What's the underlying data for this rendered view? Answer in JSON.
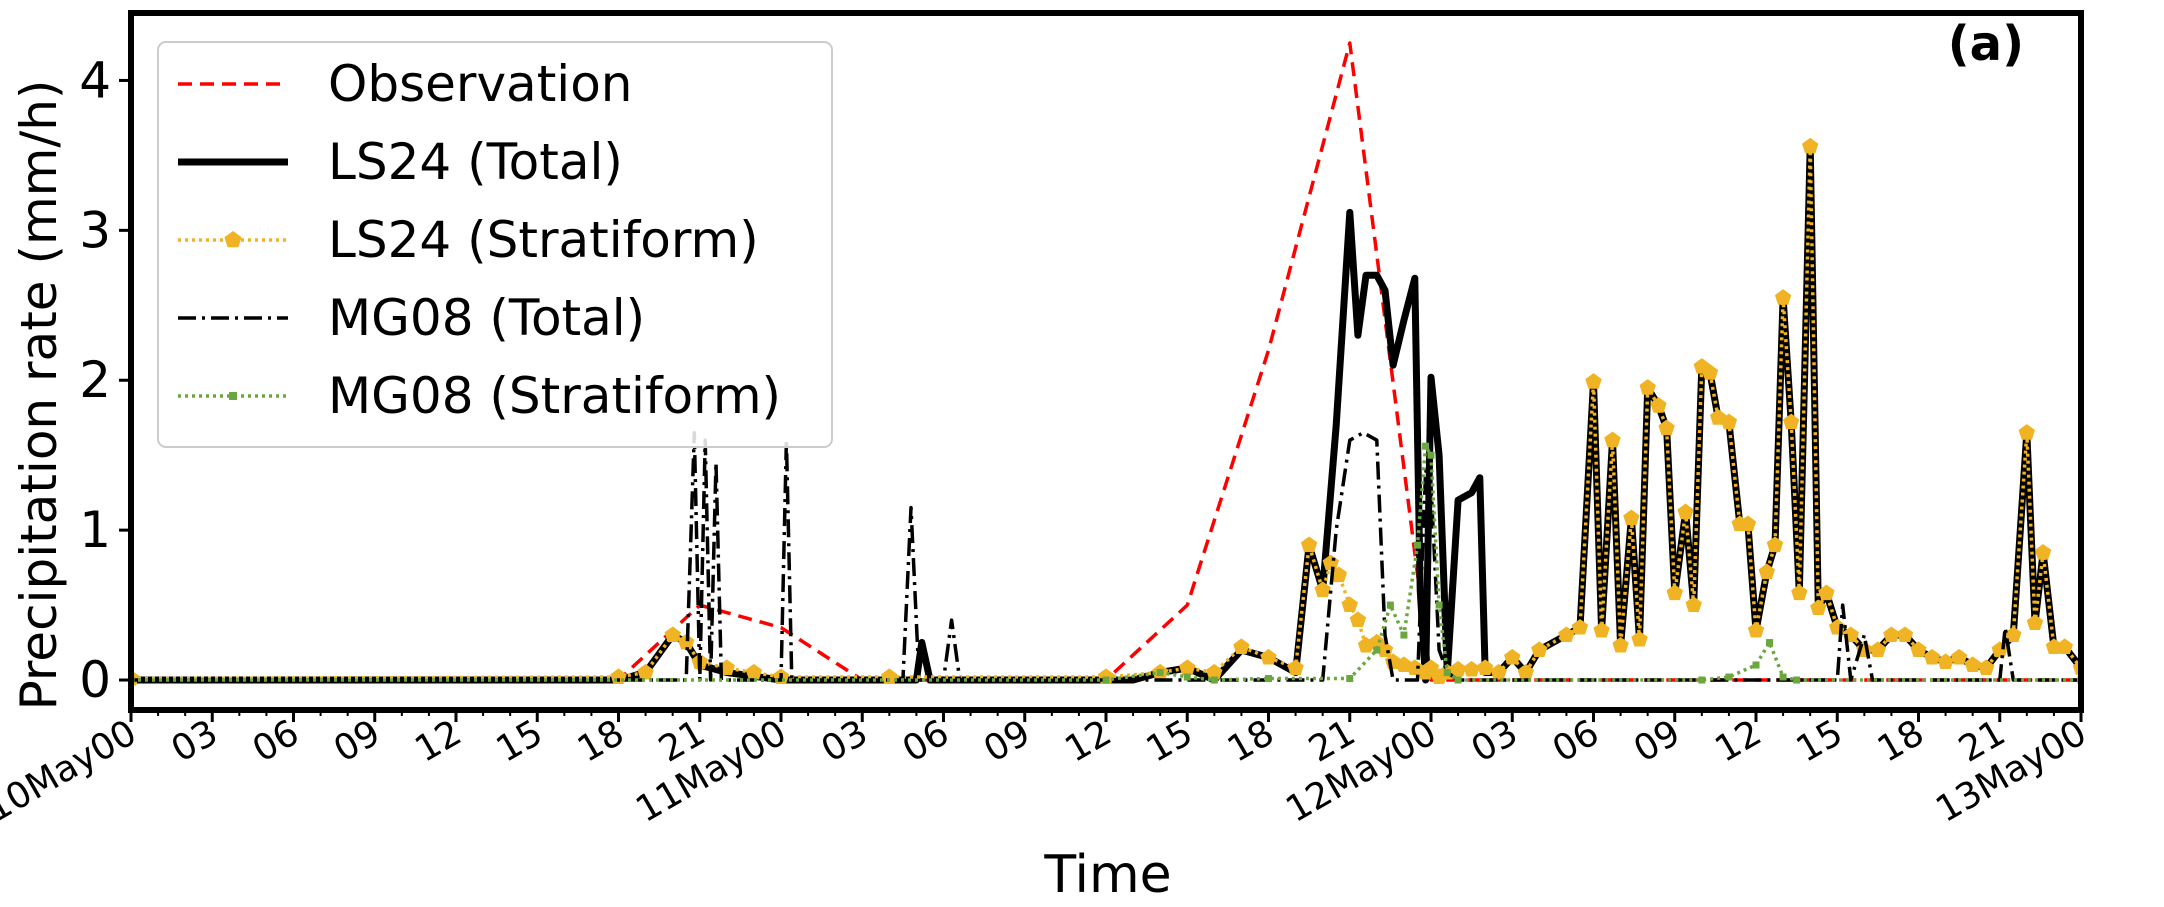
{
  "chart_data": {
    "type": "line",
    "panel_label": "(a)",
    "xlabel": "Time",
    "ylabel": "Precipitation rate (mm/h)",
    "xlim": [
      0,
      72
    ],
    "ylim": [
      -0.2,
      4.45
    ],
    "x_units": "hours since 10May00",
    "x_ticks": [
      {
        "x": 0,
        "label": "10May00"
      },
      {
        "x": 3,
        "label": "03"
      },
      {
        "x": 6,
        "label": "06"
      },
      {
        "x": 9,
        "label": "09"
      },
      {
        "x": 12,
        "label": "12"
      },
      {
        "x": 15,
        "label": "15"
      },
      {
        "x": 18,
        "label": "18"
      },
      {
        "x": 21,
        "label": "21"
      },
      {
        "x": 24,
        "label": "11May00"
      },
      {
        "x": 27,
        "label": "03"
      },
      {
        "x": 30,
        "label": "06"
      },
      {
        "x": 33,
        "label": "09"
      },
      {
        "x": 36,
        "label": "12"
      },
      {
        "x": 39,
        "label": "15"
      },
      {
        "x": 42,
        "label": "18"
      },
      {
        "x": 45,
        "label": "21"
      },
      {
        "x": 48,
        "label": "12May00"
      },
      {
        "x": 51,
        "label": "03"
      },
      {
        "x": 54,
        "label": "06"
      },
      {
        "x": 57,
        "label": "09"
      },
      {
        "x": 60,
        "label": "12"
      },
      {
        "x": 63,
        "label": "15"
      },
      {
        "x": 66,
        "label": "18"
      },
      {
        "x": 69,
        "label": "21"
      },
      {
        "x": 72,
        "label": "13May00"
      }
    ],
    "y_ticks": [
      0,
      1,
      2,
      3,
      4
    ],
    "legend_position": "top-left",
    "series": [
      {
        "name": "Observation",
        "color": "#ff0000",
        "style": "dashed",
        "points": [
          [
            0,
            0
          ],
          [
            3,
            0
          ],
          [
            6,
            0
          ],
          [
            9,
            0
          ],
          [
            12,
            0
          ],
          [
            15,
            0
          ],
          [
            18,
            0
          ],
          [
            21,
            0.5
          ],
          [
            24,
            0.35
          ],
          [
            27,
            0
          ],
          [
            30,
            0
          ],
          [
            33,
            0
          ],
          [
            36,
            0
          ],
          [
            39,
            0.5
          ],
          [
            42,
            2.2
          ],
          [
            45,
            4.25
          ],
          [
            48,
            0
          ],
          [
            51,
            0
          ],
          [
            54,
            0
          ],
          [
            57,
            0
          ],
          [
            60,
            0
          ],
          [
            63,
            0
          ],
          [
            66,
            0
          ],
          [
            69,
            0
          ],
          [
            72,
            0
          ]
        ]
      },
      {
        "name": "LS24 (Total)",
        "color": "#000000",
        "style": "solid",
        "points": [
          [
            0,
            0
          ],
          [
            18,
            0
          ],
          [
            19,
            0.05
          ],
          [
            20,
            0.3
          ],
          [
            20.5,
            0.25
          ],
          [
            21,
            0.1
          ],
          [
            22,
            0.05
          ],
          [
            24,
            0
          ],
          [
            28,
            0
          ],
          [
            29,
            0
          ],
          [
            29.2,
            0.25
          ],
          [
            29.5,
            0
          ],
          [
            30,
            0
          ],
          [
            36,
            0
          ],
          [
            37,
            0
          ],
          [
            38,
            0.05
          ],
          [
            39,
            0.08
          ],
          [
            40,
            0
          ],
          [
            41,
            0.2
          ],
          [
            42,
            0.15
          ],
          [
            43,
            0.05
          ],
          [
            43.5,
            0.9
          ],
          [
            44,
            0.6
          ],
          [
            44.5,
            1.7
          ],
          [
            45,
            3.12
          ],
          [
            45.3,
            2.3
          ],
          [
            45.6,
            2.7
          ],
          [
            46,
            2.7
          ],
          [
            46.3,
            2.6
          ],
          [
            46.6,
            2.1
          ],
          [
            47,
            2.4
          ],
          [
            47.4,
            2.68
          ],
          [
            47.6,
            0.6
          ],
          [
            47.8,
            0
          ],
          [
            48,
            2.02
          ],
          [
            48.3,
            1.5
          ],
          [
            48.6,
            0.05
          ],
          [
            49,
            1.2
          ],
          [
            49.5,
            1.25
          ],
          [
            49.8,
            1.35
          ],
          [
            50,
            0.05
          ],
          [
            50.5,
            0.05
          ],
          [
            51,
            0.15
          ],
          [
            51.5,
            0.05
          ],
          [
            52,
            0.2
          ],
          [
            53,
            0.3
          ],
          [
            53.5,
            0.35
          ],
          [
            54,
            1.99
          ],
          [
            54.3,
            0.33
          ],
          [
            54.7,
            1.6
          ],
          [
            55,
            0.23
          ],
          [
            55.4,
            1.08
          ],
          [
            55.7,
            0.27
          ],
          [
            56,
            1.95
          ],
          [
            56.4,
            1.83
          ],
          [
            56.7,
            1.68
          ],
          [
            57,
            0.58
          ],
          [
            57.4,
            1.12
          ],
          [
            57.7,
            0.5
          ],
          [
            58,
            2.09
          ],
          [
            58.3,
            2.05
          ],
          [
            58.6,
            1.75
          ],
          [
            59,
            1.72
          ],
          [
            59.4,
            1.04
          ],
          [
            59.7,
            1.04
          ],
          [
            60,
            0.33
          ],
          [
            60.4,
            0.72
          ],
          [
            60.7,
            0.9
          ],
          [
            61,
            2.55
          ],
          [
            61.3,
            1.72
          ],
          [
            61.6,
            0.58
          ],
          [
            62,
            3.56
          ],
          [
            62.3,
            0.48
          ],
          [
            62.6,
            0.58
          ],
          [
            63,
            0.35
          ],
          [
            63.5,
            0.3
          ],
          [
            64,
            0.2
          ],
          [
            64.5,
            0.2
          ],
          [
            65,
            0.3
          ],
          [
            65.5,
            0.3
          ],
          [
            66,
            0.2
          ],
          [
            66.5,
            0.15
          ],
          [
            67,
            0.12
          ],
          [
            67.5,
            0.15
          ],
          [
            68,
            0.1
          ],
          [
            68.5,
            0.08
          ],
          [
            69,
            0.2
          ],
          [
            69.5,
            0.3
          ],
          [
            70,
            1.65
          ],
          [
            70.3,
            0.38
          ],
          [
            70.6,
            0.85
          ],
          [
            71,
            0.22
          ],
          [
            71.4,
            0.22
          ],
          [
            72,
            0.08
          ]
        ]
      },
      {
        "name": "LS24 (Stratiform)",
        "color": "#f0b323",
        "style": "dotted-pentagon",
        "points": [
          [
            0,
            0.01
          ],
          [
            18,
            0.02
          ],
          [
            19,
            0.05
          ],
          [
            20,
            0.3
          ],
          [
            20.5,
            0.25
          ],
          [
            21,
            0.12
          ],
          [
            22,
            0.08
          ],
          [
            23,
            0.05
          ],
          [
            24,
            0.02
          ],
          [
            28,
            0.02
          ],
          [
            36,
            0.02
          ],
          [
            38,
            0.05
          ],
          [
            39,
            0.08
          ],
          [
            40,
            0.05
          ],
          [
            41,
            0.22
          ],
          [
            42,
            0.15
          ],
          [
            43,
            0.08
          ],
          [
            43.5,
            0.9
          ],
          [
            44,
            0.6
          ],
          [
            44.3,
            0.78
          ],
          [
            44.6,
            0.7
          ],
          [
            45,
            0.5
          ],
          [
            45.3,
            0.4
          ],
          [
            45.6,
            0.23
          ],
          [
            46,
            0.25
          ],
          [
            46.3,
            0.2
          ],
          [
            46.6,
            0.12
          ],
          [
            47,
            0.1
          ],
          [
            47.4,
            0.08
          ],
          [
            47.8,
            0.05
          ],
          [
            48,
            0.08
          ],
          [
            48.3,
            0.02
          ],
          [
            48.6,
            0.05
          ],
          [
            49,
            0.07
          ],
          [
            49.5,
            0.07
          ],
          [
            50,
            0.08
          ],
          [
            50.5,
            0.05
          ],
          [
            51,
            0.15
          ],
          [
            51.5,
            0.05
          ],
          [
            52,
            0.2
          ],
          [
            53,
            0.3
          ],
          [
            53.5,
            0.35
          ],
          [
            54,
            1.99
          ],
          [
            54.3,
            0.33
          ],
          [
            54.7,
            1.6
          ],
          [
            55,
            0.23
          ],
          [
            55.4,
            1.08
          ],
          [
            55.7,
            0.27
          ],
          [
            56,
            1.95
          ],
          [
            56.4,
            1.83
          ],
          [
            56.7,
            1.68
          ],
          [
            57,
            0.58
          ],
          [
            57.4,
            1.12
          ],
          [
            57.7,
            0.5
          ],
          [
            58,
            2.09
          ],
          [
            58.3,
            2.05
          ],
          [
            58.6,
            1.75
          ],
          [
            59,
            1.72
          ],
          [
            59.4,
            1.04
          ],
          [
            59.7,
            1.04
          ],
          [
            60,
            0.33
          ],
          [
            60.4,
            0.72
          ],
          [
            60.7,
            0.9
          ],
          [
            61,
            2.55
          ],
          [
            61.3,
            1.72
          ],
          [
            61.6,
            0.58
          ],
          [
            62,
            3.56
          ],
          [
            62.3,
            0.48
          ],
          [
            62.6,
            0.58
          ],
          [
            63,
            0.35
          ],
          [
            63.5,
            0.3
          ],
          [
            64,
            0.2
          ],
          [
            64.5,
            0.2
          ],
          [
            65,
            0.3
          ],
          [
            65.5,
            0.3
          ],
          [
            66,
            0.2
          ],
          [
            66.5,
            0.15
          ],
          [
            67,
            0.12
          ],
          [
            67.5,
            0.15
          ],
          [
            68,
            0.1
          ],
          [
            68.5,
            0.08
          ],
          [
            69,
            0.2
          ],
          [
            69.5,
            0.3
          ],
          [
            70,
            1.65
          ],
          [
            70.3,
            0.38
          ],
          [
            70.6,
            0.85
          ],
          [
            71,
            0.22
          ],
          [
            71.4,
            0.22
          ],
          [
            72,
            0.08
          ]
        ]
      },
      {
        "name": "MG08 (Total)",
        "color": "#000000",
        "style": "dashdot",
        "points": [
          [
            0,
            0
          ],
          [
            20.5,
            0
          ],
          [
            20.8,
            1.65
          ],
          [
            21,
            0
          ],
          [
            21.2,
            1.6
          ],
          [
            21.4,
            0
          ],
          [
            21.6,
            1.45
          ],
          [
            21.8,
            0
          ],
          [
            22,
            0
          ],
          [
            24,
            0
          ],
          [
            24.2,
            1.6
          ],
          [
            24.4,
            0
          ],
          [
            28.5,
            0
          ],
          [
            28.8,
            1.15
          ],
          [
            29.1,
            0
          ],
          [
            30,
            0
          ],
          [
            30.3,
            0.4
          ],
          [
            30.6,
            0
          ],
          [
            44,
            0
          ],
          [
            44.5,
            1.0
          ],
          [
            45,
            1.6
          ],
          [
            45.5,
            1.65
          ],
          [
            46,
            1.6
          ],
          [
            46.3,
            0.3
          ],
          [
            46.6,
            0
          ],
          [
            47,
            0
          ],
          [
            47.5,
            0
          ],
          [
            47.8,
            1.4
          ],
          [
            48,
            1.3
          ],
          [
            48.3,
            0.2
          ],
          [
            48.6,
            0.05
          ],
          [
            49,
            0
          ],
          [
            63,
            0
          ],
          [
            63.2,
            0.5
          ],
          [
            63.5,
            0
          ],
          [
            64,
            0.3
          ],
          [
            64.3,
            0
          ],
          [
            69,
            0
          ],
          [
            69.2,
            0.35
          ],
          [
            69.5,
            0
          ],
          [
            72,
            0
          ]
        ]
      },
      {
        "name": "MG08 (Stratiform)",
        "color": "#6aa73f",
        "style": "dotted-square",
        "points": [
          [
            0,
            0
          ],
          [
            36,
            0
          ],
          [
            38,
            0.05
          ],
          [
            39,
            0.02
          ],
          [
            40,
            0
          ],
          [
            42,
            0.01
          ],
          [
            45,
            0.01
          ],
          [
            46,
            0.2
          ],
          [
            46.5,
            0.5
          ],
          [
            47,
            0.3
          ],
          [
            47.5,
            0.9
          ],
          [
            47.8,
            1.56
          ],
          [
            48,
            1.5
          ],
          [
            48.3,
            0.5
          ],
          [
            48.6,
            0.05
          ],
          [
            49,
            0
          ],
          [
            58,
            0
          ],
          [
            59,
            0.02
          ],
          [
            60,
            0.1
          ],
          [
            60.5,
            0.25
          ],
          [
            61,
            0.02
          ],
          [
            61.5,
            0
          ],
          [
            72,
            0
          ]
        ]
      }
    ]
  }
}
